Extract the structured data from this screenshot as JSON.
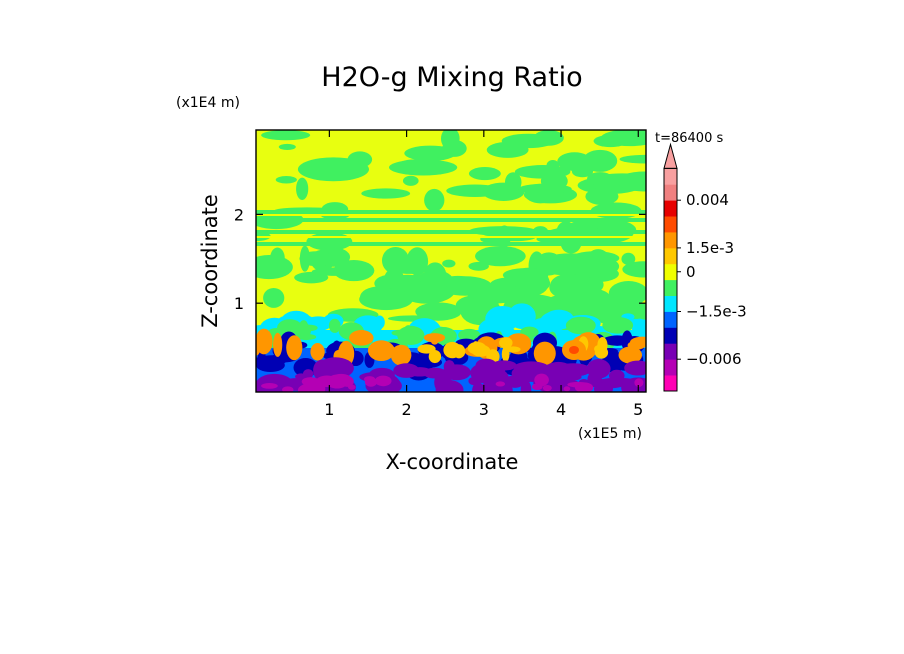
{
  "chart_data": {
    "type": "heatmap",
    "title": "H2O-g Mixing Ratio",
    "xlabel": "X-coordinate",
    "ylabel": "Z-coordinate",
    "x_scale_label": "(x1E5 m)",
    "y_scale_label": "(x1E4 m)",
    "time_label": "t=86400 s",
    "xlim": [
      0.05,
      5.1
    ],
    "ylim": [
      0,
      2.95
    ],
    "x_ticks": [
      {
        "value": 1,
        "label": "1"
      },
      {
        "value": 2,
        "label": "2"
      },
      {
        "value": 3,
        "label": "3"
      },
      {
        "value": 4,
        "label": "4"
      },
      {
        "value": 5,
        "label": "5"
      }
    ],
    "y_ticks": [
      {
        "value": 1,
        "label": "1"
      },
      {
        "value": 2,
        "label": "2"
      }
    ],
    "colorbar": {
      "levels": [
        {
          "color": "#ff00b4"
        },
        {
          "color": "#b400b4"
        },
        {
          "color": "#7800b4"
        },
        {
          "color": "#0000b4"
        },
        {
          "color": "#0064ff"
        },
        {
          "color": "#00e6ff"
        },
        {
          "color": "#40f060"
        },
        {
          "color": "#f0ff00"
        },
        {
          "color": "#ffc800"
        },
        {
          "color": "#ff9600"
        },
        {
          "color": "#ff4b00"
        },
        {
          "color": "#e60000"
        },
        {
          "color": "#f08080"
        },
        {
          "color": "#f8a0a0"
        }
      ],
      "extend_color": "#f8a0a0",
      "tick_labels": [
        {
          "label": "0.004",
          "level_boundary": 12
        },
        {
          "label": "1.5e-3",
          "level_boundary": 9
        },
        {
          "label": "0",
          "level_boundary": 7.5
        },
        {
          "label": "−1.5e-3",
          "level_boundary": 5
        },
        {
          "label": "−0.006",
          "level_boundary": 2
        }
      ]
    }
  }
}
